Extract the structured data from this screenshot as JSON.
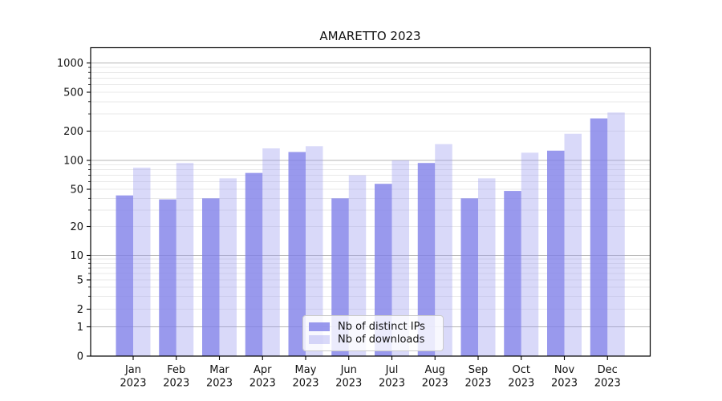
{
  "chart_data": {
    "type": "bar",
    "title": "AMARETTO 2023",
    "categories": [
      "Jan",
      "Feb",
      "Mar",
      "Apr",
      "May",
      "Jun",
      "Jul",
      "Aug",
      "Sep",
      "Oct",
      "Nov",
      "Dec"
    ],
    "category_year": "2023",
    "series": [
      {
        "name": "Nb of distinct IPs",
        "color": "#7f7fe8",
        "fill_opacity": 0.8,
        "values": [
          43,
          39,
          40,
          74,
          122,
          40,
          57,
          94,
          40,
          48,
          126,
          270
        ]
      },
      {
        "name": "Nb of downloads",
        "color": "#9999ee",
        "fill_opacity": 0.37,
        "values": [
          84,
          94,
          65,
          133,
          140,
          70,
          100,
          147,
          65,
          120,
          188,
          310
        ]
      }
    ],
    "yscale": "log",
    "yticks": [
      0,
      1,
      2,
      5,
      10,
      20,
      50,
      100,
      200,
      500,
      1000
    ],
    "ylim": [
      0,
      1400
    ],
    "xlabel": "",
    "ylabel": "",
    "grid": true,
    "legend_position": "lower-center-inside",
    "colors": {
      "axis": "#000000",
      "major_grid": "#b6b6b6",
      "minor_grid": "#e9e9e9",
      "text": "#111111",
      "background": "#ffffff"
    }
  }
}
